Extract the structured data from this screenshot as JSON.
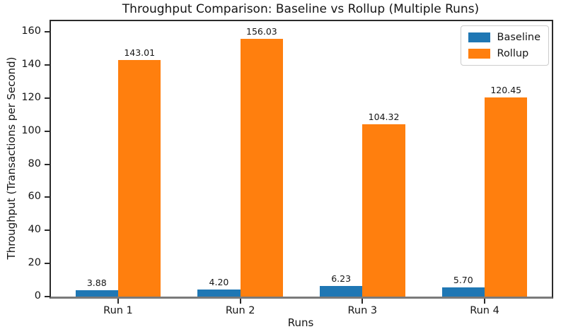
{
  "chart_data": {
    "type": "bar",
    "title": "Throughput Comparison: Baseline vs Rollup (Multiple Runs)",
    "xlabel": "Runs",
    "ylabel": "Throughput (Transactions per Second)",
    "categories": [
      "Run 1",
      "Run 2",
      "Run 3",
      "Run 4"
    ],
    "series": [
      {
        "name": "Baseline",
        "color": "#1f77b4",
        "values": [
          3.88,
          4.2,
          6.23,
          5.7
        ],
        "value_labels": [
          "3.88",
          "4.20",
          "6.23",
          "5.70"
        ]
      },
      {
        "name": "Rollup",
        "color": "#ff7f0e",
        "values": [
          143.01,
          156.03,
          104.32,
          120.45
        ],
        "value_labels": [
          "143.01",
          "156.03",
          "104.32",
          "120.45"
        ]
      }
    ],
    "yticks": [
      0,
      20,
      40,
      60,
      80,
      100,
      120,
      140,
      160
    ],
    "ylim": [
      0,
      166.5
    ],
    "xlim": [
      -0.55,
      3.55
    ],
    "bar_width_data_units": 0.35,
    "grid": false,
    "legend_position": "upper right",
    "background": "#ffffff"
  }
}
